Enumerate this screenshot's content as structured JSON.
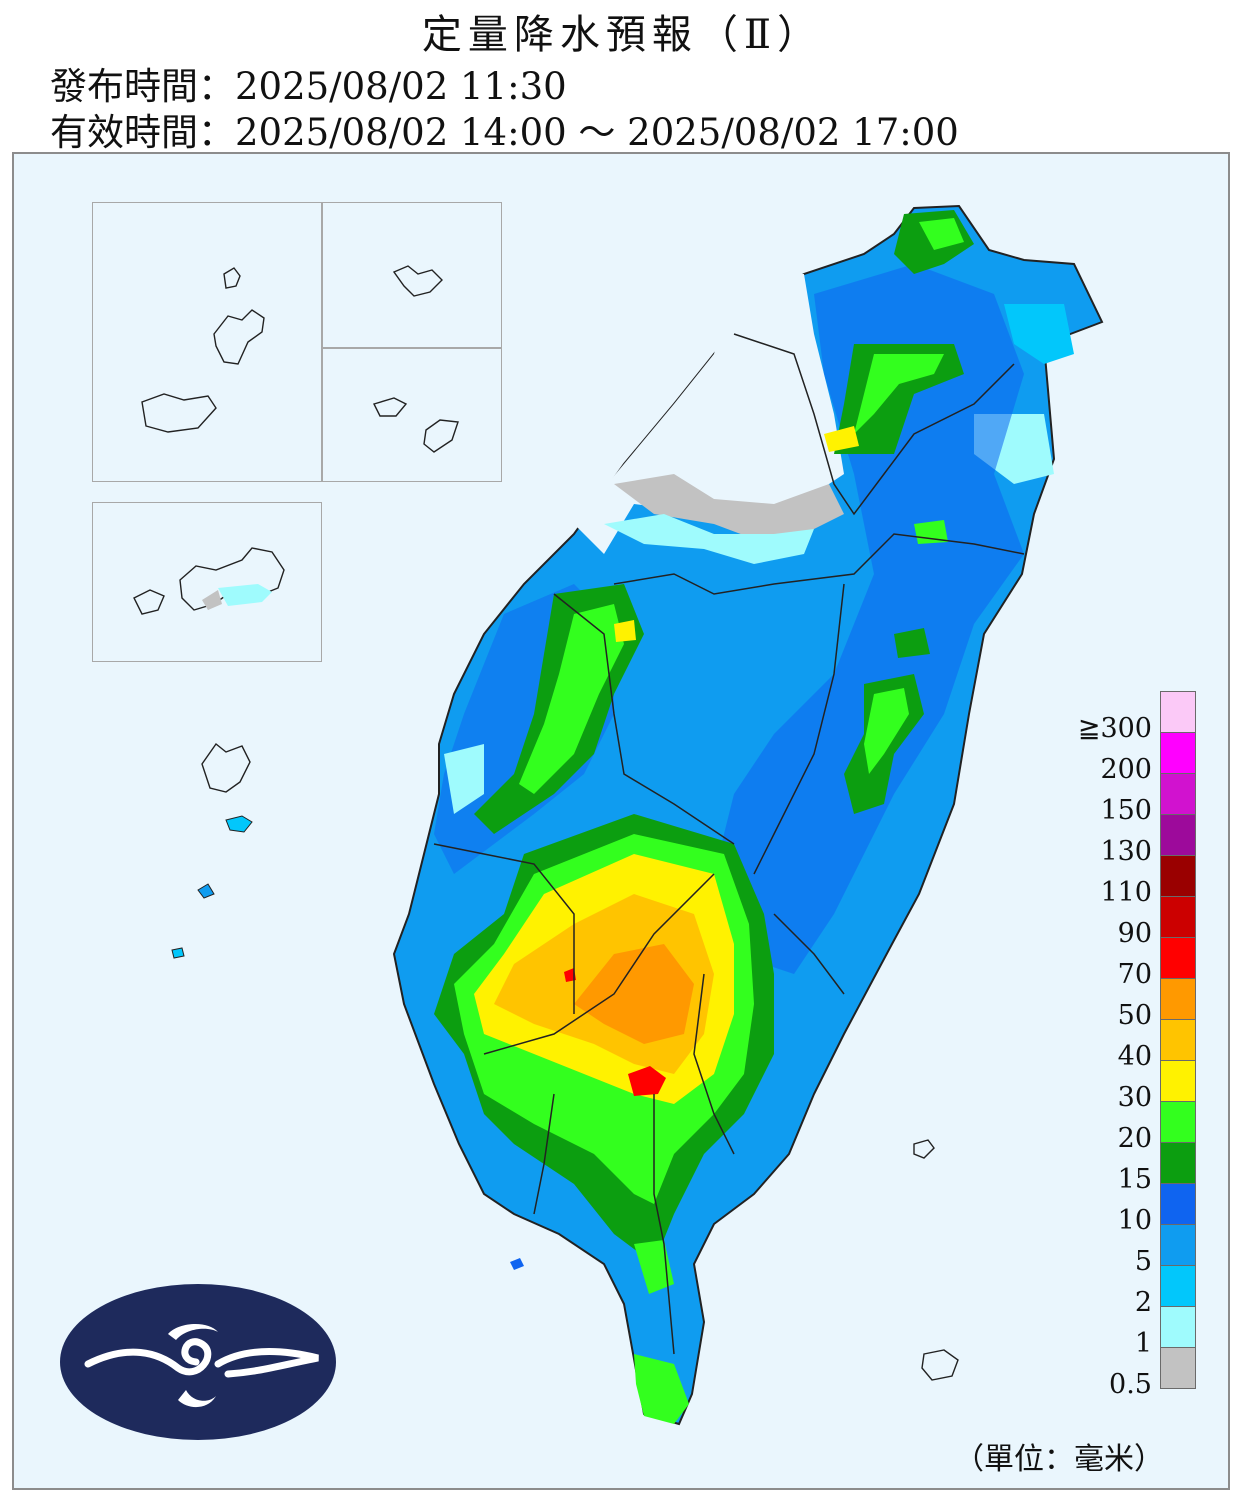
{
  "header": {
    "title": "定量降水預報（Ⅱ）",
    "issue_time": "發布時間：2025/08/02 11:30",
    "valid_time": "有效時間：2025/08/02 14:00 ～ 2025/08/02 17:00"
  },
  "legend": {
    "unit_label": "（單位：毫米）",
    "levels": [
      {
        "label": "≧300",
        "color": "#fbc9f7"
      },
      {
        "label": "200",
        "color": "#ff00ff"
      },
      {
        "label": "150",
        "color": "#d112cf"
      },
      {
        "label": "130",
        "color": "#9d0a9b"
      },
      {
        "label": "110",
        "color": "#9a0000"
      },
      {
        "label": "90",
        "color": "#cc0000"
      },
      {
        "label": "70",
        "color": "#ff0000"
      },
      {
        "label": "50",
        "color": "#ff9900"
      },
      {
        "label": "40",
        "color": "#ffc400"
      },
      {
        "label": "30",
        "color": "#fff200"
      },
      {
        "label": "20",
        "color": "#33ff1e"
      },
      {
        "label": "15",
        "color": "#0c9e10"
      },
      {
        "label": "10",
        "color": "#0f64f0"
      },
      {
        "label": "5",
        "color": "#0f9cf0"
      },
      {
        "label": "2",
        "color": "#02c7fb"
      },
      {
        "label": "1",
        "color": "#9ffbfd"
      },
      {
        "label": "0.5",
        "color": "#c2c2c2"
      }
    ]
  },
  "logo": {
    "icon": "cwa-cloud-logo-icon",
    "color": "#1e2a5c"
  }
}
